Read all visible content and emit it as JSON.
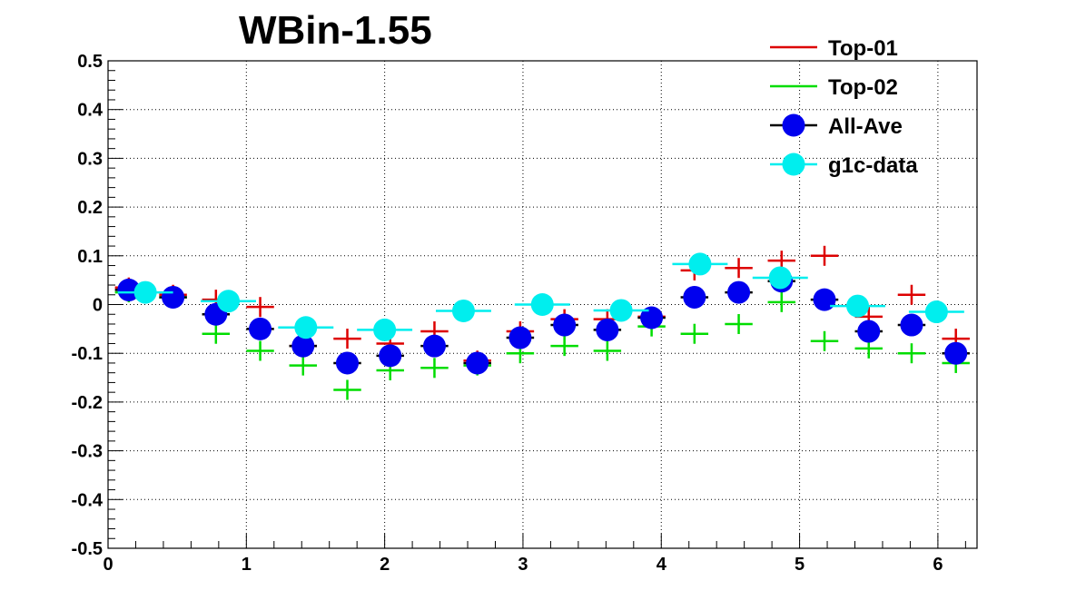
{
  "chart_data": {
    "type": "scatter",
    "title": "WBin-1.55",
    "xlabel": "",
    "ylabel": "",
    "xlim": [
      0,
      6.283
    ],
    "ylim": [
      -0.5,
      0.5
    ],
    "grid": true,
    "legend_position": "top-right",
    "x_ticks": [
      "0",
      "1",
      "2",
      "3",
      "4",
      "5",
      "6"
    ],
    "y_ticks": [
      "-0.5",
      "-0.4",
      "-0.3",
      "-0.2",
      "-0.1",
      "0",
      "0.1",
      "0.2",
      "0.3",
      "0.4",
      "0.5"
    ],
    "series": [
      {
        "name": "Top-01",
        "color": "#dd0000",
        "marker": "cross",
        "bin_half_width": 0.1,
        "x": [
          0.15,
          0.47,
          0.78,
          1.1,
          1.41,
          1.73,
          2.04,
          2.36,
          2.67,
          2.98,
          3.3,
          3.61,
          3.93,
          4.24,
          4.56,
          4.87,
          5.18,
          5.5,
          5.81,
          6.13
        ],
        "y": [
          0.035,
          0.02,
          0.01,
          -0.005,
          -0.085,
          -0.07,
          -0.08,
          -0.055,
          -0.115,
          -0.055,
          -0.03,
          -0.03,
          -0.025,
          0.07,
          0.075,
          0.09,
          0.1,
          -0.025,
          0.02,
          -0.07
        ]
      },
      {
        "name": "Top-02",
        "color": "#00dd00",
        "marker": "cross",
        "bin_half_width": 0.1,
        "x": [
          0.15,
          0.47,
          0.78,
          1.1,
          1.41,
          1.73,
          2.04,
          2.36,
          2.67,
          2.98,
          3.3,
          3.61,
          3.93,
          4.24,
          4.56,
          4.87,
          5.18,
          5.5,
          5.81,
          6.13
        ],
        "y": [
          0.025,
          0.015,
          -0.06,
          -0.095,
          -0.125,
          -0.175,
          -0.135,
          -0.13,
          -0.125,
          -0.1,
          -0.085,
          -0.095,
          -0.045,
          -0.06,
          -0.04,
          0.005,
          -0.075,
          -0.09,
          -0.1,
          -0.12
        ]
      },
      {
        "name": "All-Ave",
        "color": "#0000ee",
        "marker": "circle",
        "bin_half_width": 0.1,
        "x": [
          0.15,
          0.47,
          0.78,
          1.1,
          1.41,
          1.73,
          2.04,
          2.36,
          2.67,
          2.98,
          3.3,
          3.61,
          3.93,
          4.24,
          4.56,
          4.87,
          5.18,
          5.5,
          5.81,
          6.13
        ],
        "y": [
          0.03,
          0.015,
          -0.02,
          -0.05,
          -0.085,
          -0.12,
          -0.105,
          -0.085,
          -0.12,
          -0.068,
          -0.042,
          -0.052,
          -0.027,
          0.015,
          0.025,
          0.048,
          0.01,
          -0.055,
          -0.042,
          -0.1
        ]
      },
      {
        "name": "g1c-data",
        "color": "#00eeee",
        "marker": "circle",
        "bin_half_width": 0.2,
        "x": [
          0.27,
          0.87,
          1.43,
          2.0,
          2.57,
          3.14,
          3.71,
          4.28,
          4.86,
          5.42,
          5.99
        ],
        "y": [
          0.025,
          0.007,
          -0.047,
          -0.052,
          -0.013,
          0.0,
          -0.012,
          0.083,
          0.055,
          -0.003,
          -0.015
        ]
      }
    ]
  }
}
